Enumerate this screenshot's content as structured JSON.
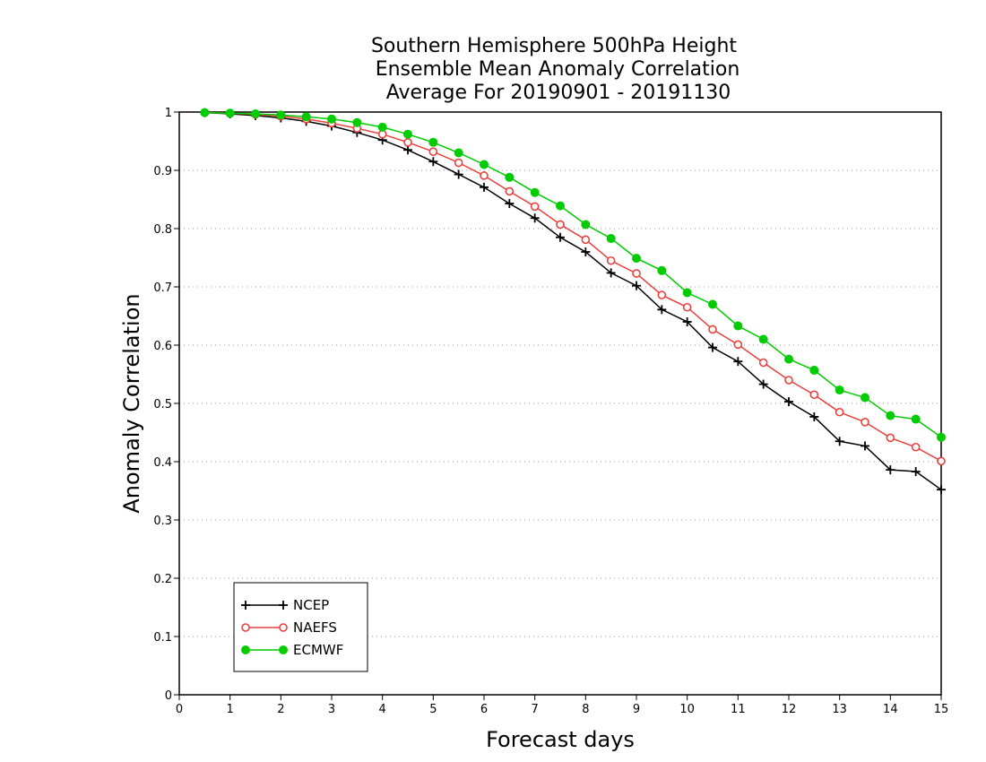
{
  "chart_data": {
    "type": "line",
    "title_lines": [
      "Southern Hemisphere 500hPa Height",
      "Ensemble Mean Anomaly Correlation",
      "Average For 20190901 - 20191130"
    ],
    "xlabel": "Forecast days",
    "ylabel": "Anomaly Correlation",
    "xlim": [
      0,
      15
    ],
    "ylim": [
      0,
      1
    ],
    "x_ticks": [
      "0",
      "1",
      "2",
      "3",
      "4",
      "5",
      "6",
      "7",
      "8",
      "9",
      "10",
      "11",
      "12",
      "13",
      "14",
      "15"
    ],
    "y_ticks": [
      "0",
      "0.1",
      "0.2",
      "0.3",
      "0.4",
      "0.5",
      "0.6",
      "0.7",
      "0.8",
      "0.9",
      "1"
    ],
    "grid": "horizontal dotted",
    "legend_position": "bottom-left",
    "x": [
      0.5,
      1,
      1.5,
      2,
      2.5,
      3,
      3.5,
      4,
      4.5,
      5,
      5.5,
      6,
      6.5,
      7,
      7.5,
      8,
      8.5,
      9,
      9.5,
      10,
      10.5,
      11,
      11.5,
      12,
      12.5,
      13,
      13.5,
      14,
      14.5,
      15
    ],
    "series": [
      {
        "name": "NCEP",
        "color": "#000000",
        "marker": "plus",
        "values": [
          0.999,
          0.997,
          0.994,
          0.99,
          0.984,
          0.976,
          0.965,
          0.952,
          0.935,
          0.915,
          0.893,
          0.871,
          0.843,
          0.818,
          0.785,
          0.76,
          0.724,
          0.702,
          0.661,
          0.64,
          0.596,
          0.572,
          0.533,
          0.503,
          0.477,
          0.435,
          0.427,
          0.386,
          0.383,
          0.352
        ]
      },
      {
        "name": "NAEFS",
        "color": "#e8413e",
        "marker": "open-circle",
        "values": [
          0.999,
          0.998,
          0.996,
          0.993,
          0.988,
          0.981,
          0.972,
          0.962,
          0.948,
          0.932,
          0.913,
          0.891,
          0.864,
          0.838,
          0.807,
          0.781,
          0.745,
          0.723,
          0.686,
          0.665,
          0.627,
          0.601,
          0.57,
          0.54,
          0.515,
          0.485,
          0.468,
          0.441,
          0.425,
          0.401
        ]
      },
      {
        "name": "ECMWF",
        "color": "#00cc00",
        "marker": "filled-circle",
        "values": [
          0.999,
          0.998,
          0.997,
          0.995,
          0.992,
          0.988,
          0.982,
          0.974,
          0.962,
          0.948,
          0.93,
          0.91,
          0.888,
          0.862,
          0.839,
          0.807,
          0.783,
          0.749,
          0.728,
          0.69,
          0.67,
          0.633,
          0.61,
          0.576,
          0.557,
          0.523,
          0.51,
          0.479,
          0.473,
          0.442
        ]
      }
    ]
  }
}
